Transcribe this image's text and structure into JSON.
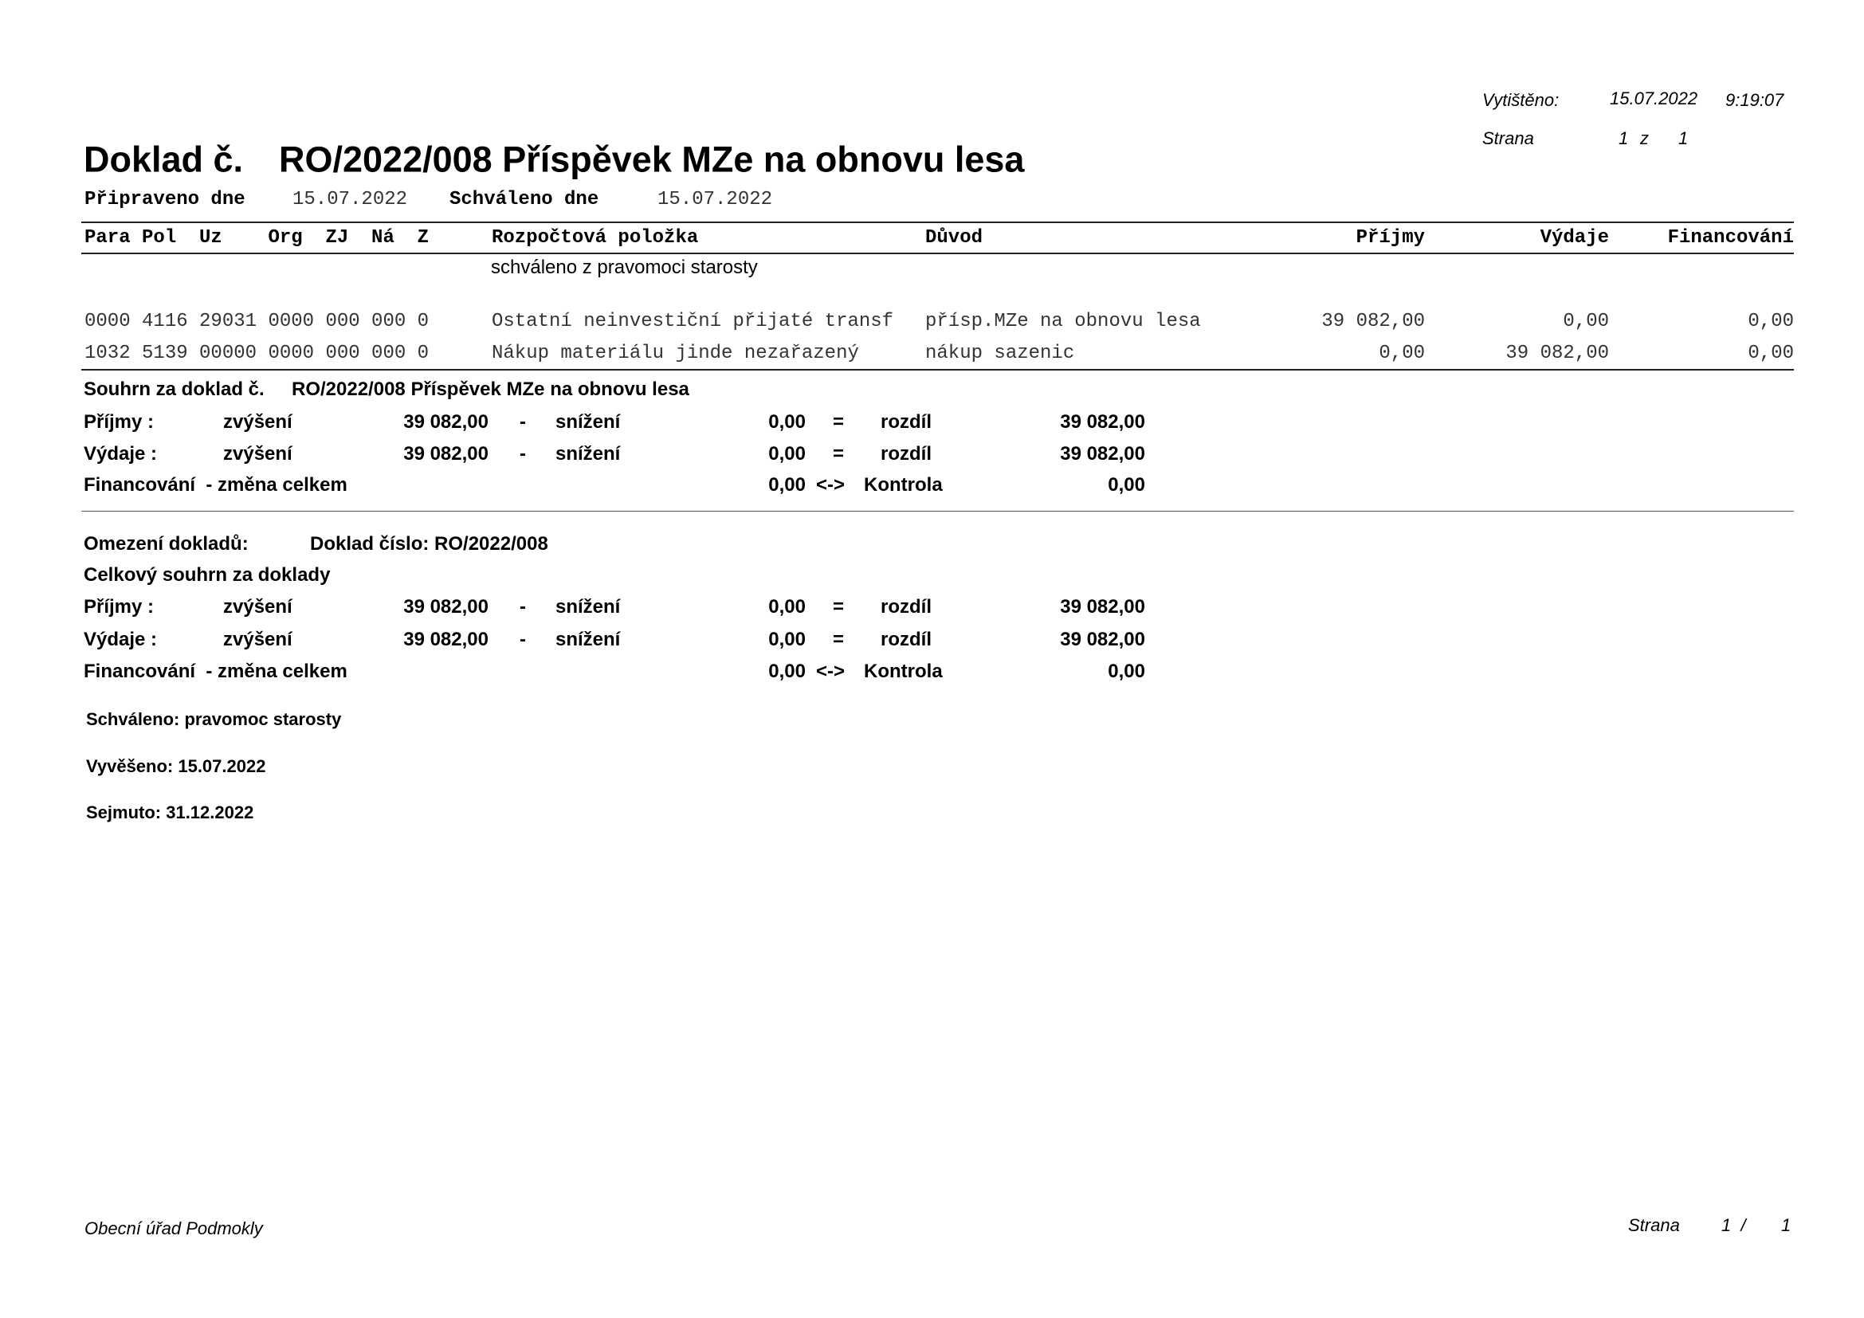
{
  "header": {
    "printed_label": "Vytištěno:",
    "printed_date": "15.07.2022",
    "printed_time": "9:19:07",
    "page_label": "Strana",
    "page_current": "1",
    "page_sep": "z",
    "page_total": "1"
  },
  "title": {
    "prefix": "Doklad č.",
    "text": "RO/2022/008 Příspěvek MZe na obnovu lesa"
  },
  "dates": {
    "prepared_label": "Připraveno dne",
    "prepared_value": "15.07.2022",
    "approved_label": "Schváleno dne",
    "approved_value": "15.07.2022"
  },
  "table": {
    "columns": {
      "codes": "Para Pol  Uz    Org  ZJ  Ná  Z",
      "item": "Rozpočtová položka",
      "reason": "Důvod",
      "income": "Příjmy",
      "expense": "Výdaje",
      "financing": "Financování"
    },
    "note": "schváleno z pravomoci starosty",
    "rows": [
      {
        "codes": "0000 4116 29031 0000 000 000 0",
        "item": "Ostatní neinvestiční přijaté transf",
        "reason": "přísp.MZe na obnovu lesa",
        "income": "39 082,00",
        "expense": "0,00",
        "financing": "0,00"
      },
      {
        "codes": "1032 5139 00000 0000 000 000 0",
        "item": "Nákup materiálu jinde nezařazený",
        "reason": "nákup sazenic",
        "income": "0,00",
        "expense": "39 082,00",
        "financing": "0,00"
      }
    ]
  },
  "summary": {
    "title_prefix": "Souhrn za doklad č.",
    "title_text": "RO/2022/008 Příspěvek MZe na obnovu lesa",
    "rows": [
      {
        "label": "Příjmy :",
        "inc_label": "zvýšení",
        "inc": "39 082,00",
        "op1": "-",
        "dec_label": "snížení",
        "dec": "0,00",
        "op2": "=",
        "res_label": "rozdíl",
        "res": "39 082,00"
      },
      {
        "label": "Výdaje :",
        "inc_label": "zvýšení",
        "inc": "39 082,00",
        "op1": "-",
        "dec_label": "snížení",
        "dec": "0,00",
        "op2": "=",
        "res_label": "rozdíl",
        "res": "39 082,00"
      }
    ],
    "fin": {
      "label": "Financování  - změna celkem",
      "value": "0,00",
      "op": "<->",
      "check_label": "Kontrola",
      "check": "0,00"
    }
  },
  "restriction": {
    "label": "Omezení dokladů:",
    "value": "Doklad číslo: RO/2022/008"
  },
  "total": {
    "title": "Celkový souhrn za doklady",
    "rows": [
      {
        "label": "Příjmy :",
        "inc_label": "zvýšení",
        "inc": "39 082,00",
        "op1": "-",
        "dec_label": "snížení",
        "dec": "0,00",
        "op2": "=",
        "res_label": "rozdíl",
        "res": "39 082,00"
      },
      {
        "label": "Výdaje :",
        "inc_label": "zvýšení",
        "inc": "39 082,00",
        "op1": "-",
        "dec_label": "snížení",
        "dec": "0,00",
        "op2": "=",
        "res_label": "rozdíl",
        "res": "39 082,00"
      }
    ],
    "fin": {
      "label": "Financování  - změna celkem",
      "value": "0,00",
      "op": "<->",
      "check_label": "Kontrola",
      "check": "0,00"
    }
  },
  "notes": {
    "approved": "Schváleno: pravomoc starosty",
    "posted": "Vyvěšeno: 15.07.2022",
    "removed": "Sejmuto: 31.12.2022"
  },
  "footer": {
    "org": "Obecní úřad Podmokly",
    "page_label": "Strana",
    "page_current": "1  /",
    "page_total": "1"
  }
}
